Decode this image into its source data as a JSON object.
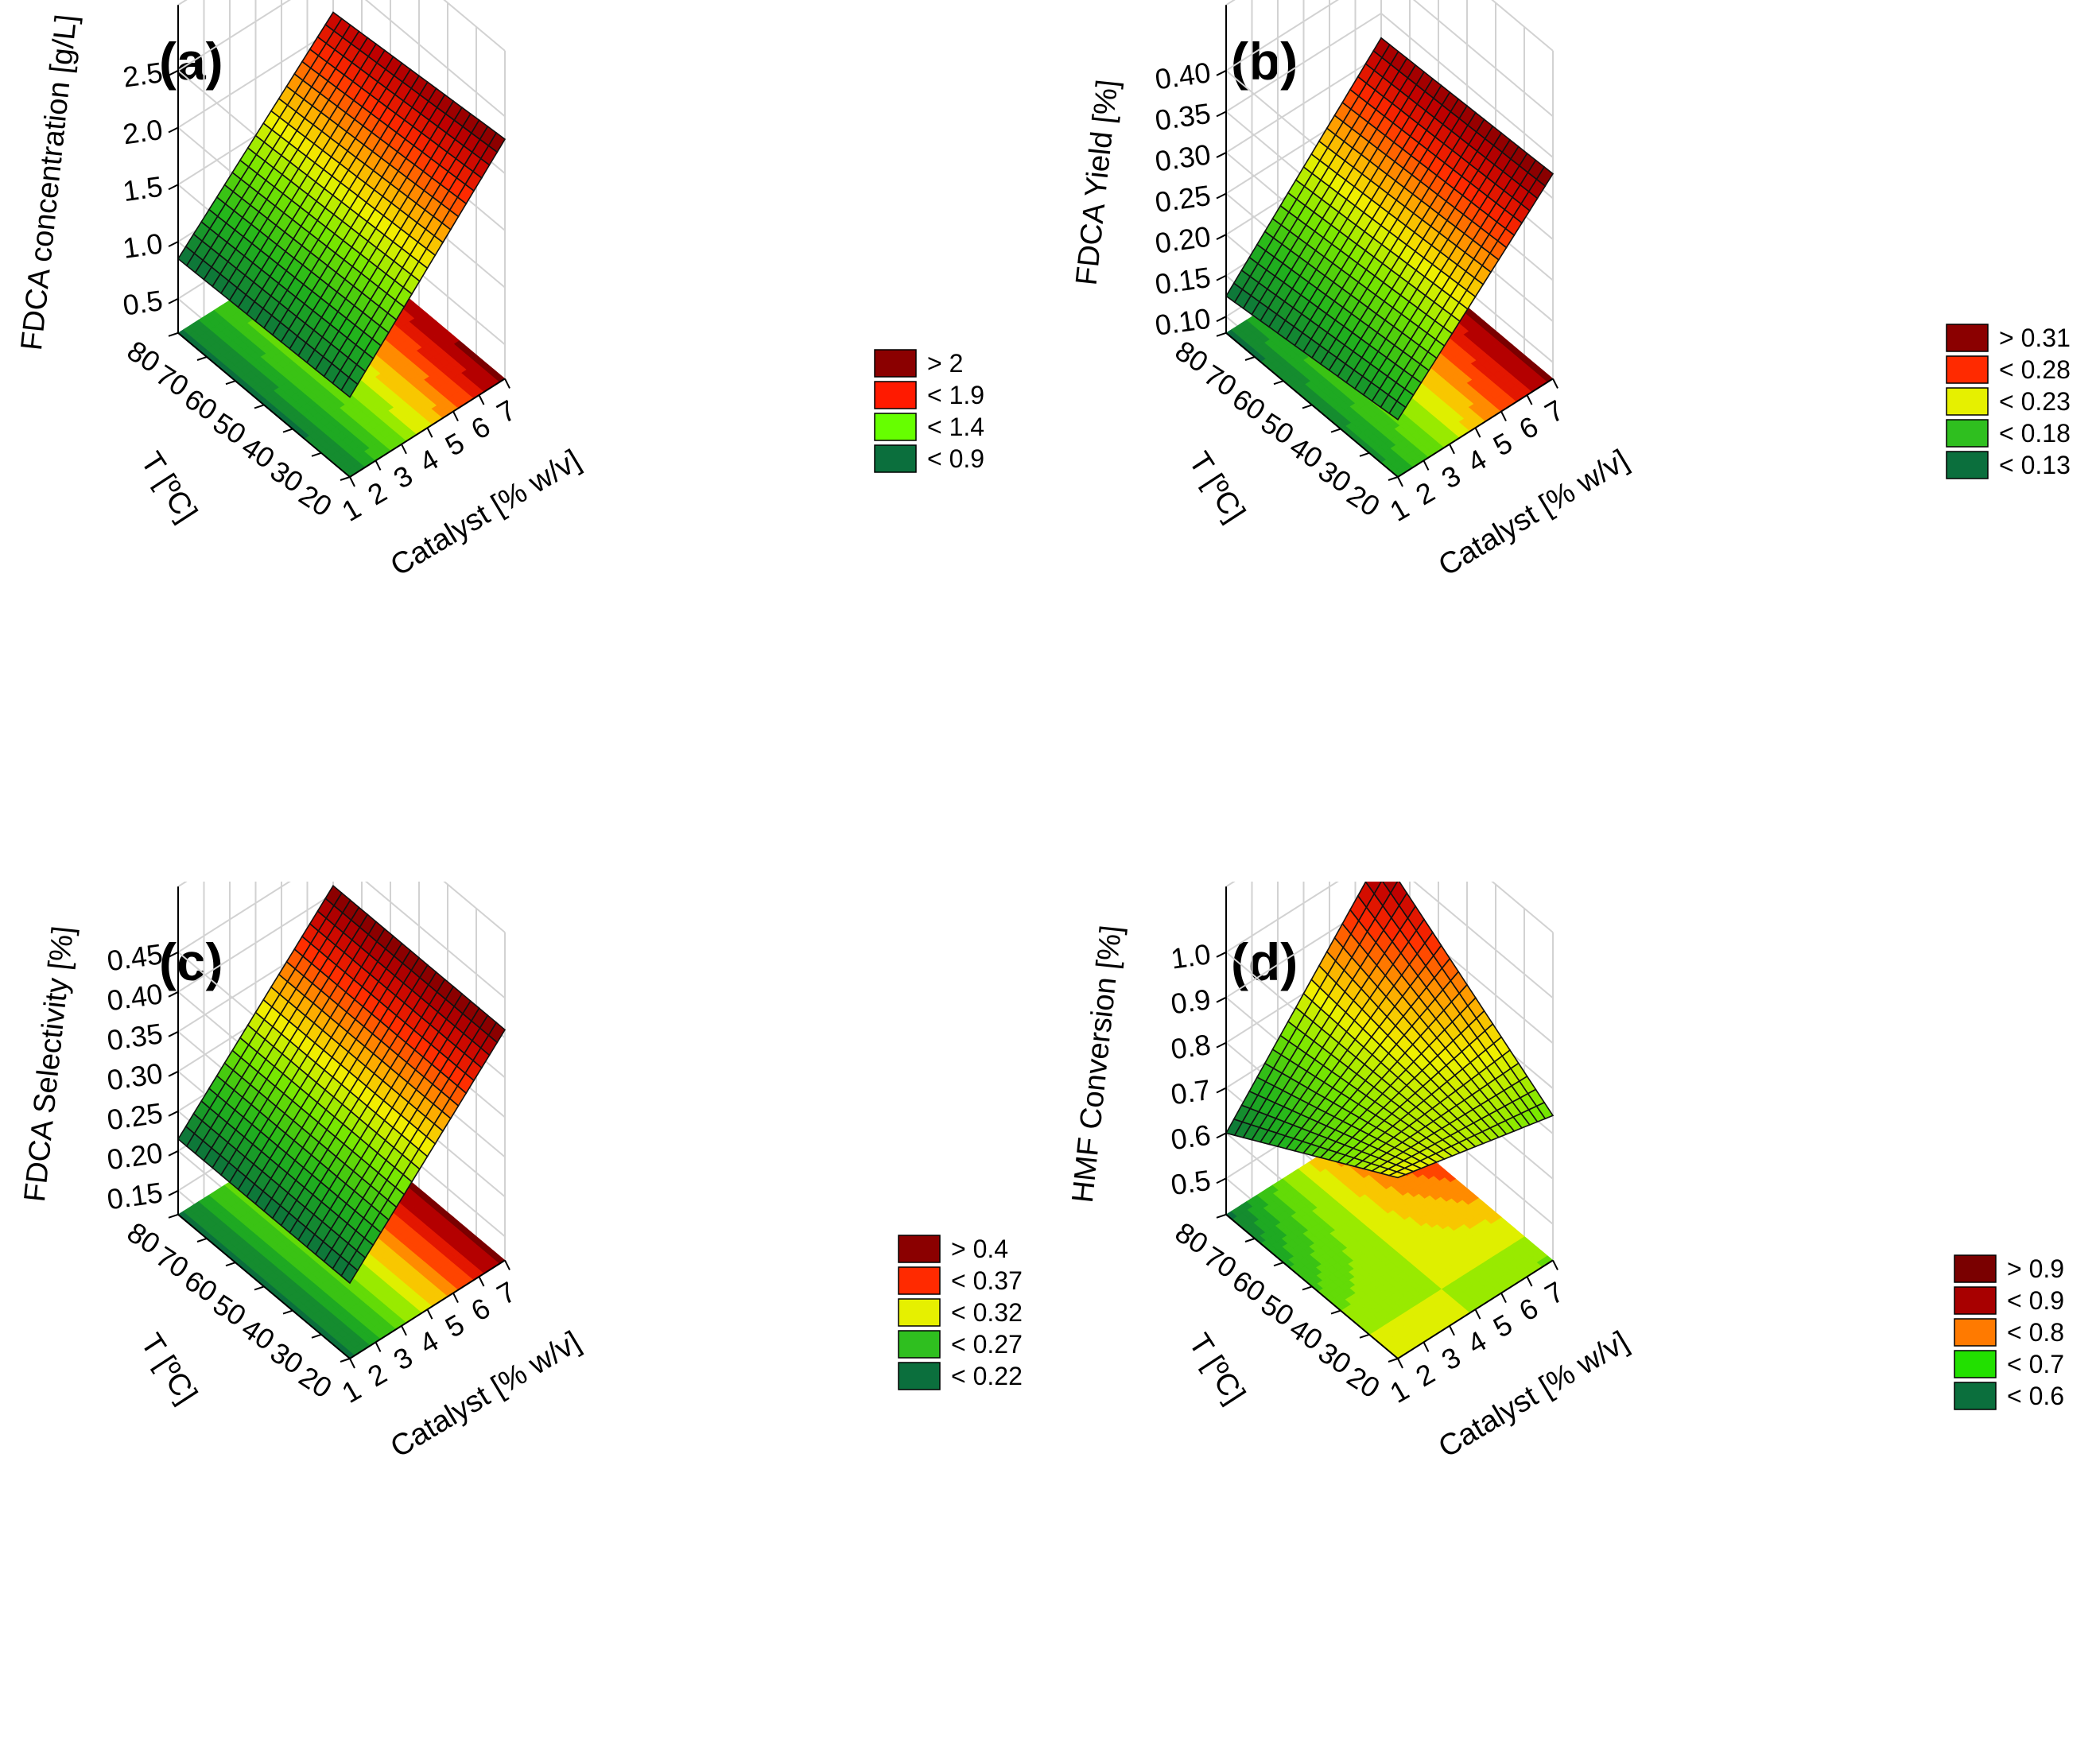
{
  "chart_data": [
    {
      "type": "surface3d",
      "panel_label": "(a)",
      "zlabel": "FDCA concentration [g/L]",
      "xlabel": "Catalyst [% w/v]",
      "ylabel": "T [ºC]",
      "x_ticks": [
        "1",
        "2",
        "3",
        "4",
        "5",
        "6",
        "7"
      ],
      "y_ticks": [
        "20",
        "30",
        "40",
        "50",
        "60",
        "70",
        "80"
      ],
      "z_ticks": [
        "0.5",
        "1.0",
        "1.5",
        "2.0",
        "2.5"
      ],
      "xlim": [
        1,
        7
      ],
      "ylim": [
        20,
        80
      ],
      "zlim": [
        0.2,
        2.5
      ],
      "surface_corners": {
        "x1_t80": 0.85,
        "x7_t80": 2.15,
        "x1_t20": 0.9,
        "x7_t20": 2.3
      },
      "legend": [
        {
          "label": "> 2",
          "color": "#8b0000"
        },
        {
          "label": "< 1.9",
          "color": "#ff1a00"
        },
        {
          "label": "< 1.4",
          "color": "#66ff00"
        },
        {
          "label": "< 0.9",
          "color": "#0b6f3d"
        }
      ]
    },
    {
      "type": "surface3d",
      "panel_label": "(b)",
      "zlabel": "FDCA Yield [%]",
      "xlabel": "Catalyst [% w/v]",
      "ylabel": "T [ºC]",
      "x_ticks": [
        "1",
        "2",
        "3",
        "4",
        "5",
        "6",
        "7"
      ],
      "y_ticks": [
        "20",
        "30",
        "40",
        "50",
        "60",
        "70",
        "80"
      ],
      "z_ticks": [
        "0.10",
        "0.15",
        "0.20",
        "0.25",
        "0.30",
        "0.35",
        "0.40"
      ],
      "xlim": [
        1,
        7
      ],
      "ylim": [
        20,
        80
      ],
      "zlim": [
        0.08,
        0.4
      ],
      "surface_corners": {
        "x1_t80": 0.125,
        "x7_t80": 0.32,
        "x1_t20": 0.15,
        "x7_t20": 0.33
      },
      "legend": [
        {
          "label": "> 0.31",
          "color": "#8b0000"
        },
        {
          "label": "< 0.28",
          "color": "#ff2a00"
        },
        {
          "label": "< 0.23",
          "color": "#e6f000"
        },
        {
          "label": "< 0.18",
          "color": "#2fbf1f"
        },
        {
          "label": "< 0.13",
          "color": "#0b6f3d"
        }
      ]
    },
    {
      "type": "surface3d",
      "panel_label": "(c)",
      "zlabel": "FDCA Selectivity [%]",
      "xlabel": "Catalyst [% w/v]",
      "ylabel": "T [ºC]",
      "x_ticks": [
        "1",
        "2",
        "3",
        "4",
        "5",
        "6",
        "7"
      ],
      "y_ticks": [
        "20",
        "30",
        "40",
        "50",
        "60",
        "70",
        "80"
      ],
      "z_ticks": [
        "0.15",
        "0.20",
        "0.25",
        "0.30",
        "0.35",
        "0.40",
        "0.45"
      ],
      "xlim": [
        1,
        7
      ],
      "ylim": [
        20,
        80
      ],
      "zlim": [
        0.12,
        0.45
      ],
      "surface_corners": {
        "x1_t80": 0.215,
        "x7_t80": 0.41,
        "x1_t20": 0.215,
        "x7_t20": 0.41
      },
      "legend": [
        {
          "label": "> 0.4",
          "color": "#8b0000"
        },
        {
          "label": "< 0.37",
          "color": "#ff2a00"
        },
        {
          "label": "< 0.32",
          "color": "#e6f000"
        },
        {
          "label": "< 0.27",
          "color": "#2fbf1f"
        },
        {
          "label": "< 0.22",
          "color": "#0b6f3d"
        }
      ]
    },
    {
      "type": "surface3d",
      "panel_label": "(d)",
      "zlabel": "HMF Conversion [%]",
      "xlabel": "Catalyst [% w/v]",
      "ylabel": "T [ºC]",
      "x_ticks": [
        "1",
        "2",
        "3",
        "4",
        "5",
        "6",
        "7"
      ],
      "y_ticks": [
        "20",
        "30",
        "40",
        "50",
        "60",
        "70",
        "80"
      ],
      "z_ticks": [
        "0.5",
        "0.6",
        "0.7",
        "0.8",
        "0.9",
        "1.0"
      ],
      "xlim": [
        1,
        7
      ],
      "ylim": [
        20,
        80
      ],
      "zlim": [
        0.42,
        1.0
      ],
      "surface_corners": {
        "x1_t80": 0.6,
        "x7_t80": 1.0,
        "x1_t20": 0.82,
        "x7_t20": 0.74
      },
      "legend": [
        {
          "label": "> 0.9",
          "color": "#7a0000"
        },
        {
          "label": "< 0.9",
          "color": "#a80000"
        },
        {
          "label": "< 0.8",
          "color": "#ff7a00"
        },
        {
          "label": "< 0.7",
          "color": "#22e000"
        },
        {
          "label": "< 0.6",
          "color": "#0b6f3d"
        }
      ]
    }
  ]
}
